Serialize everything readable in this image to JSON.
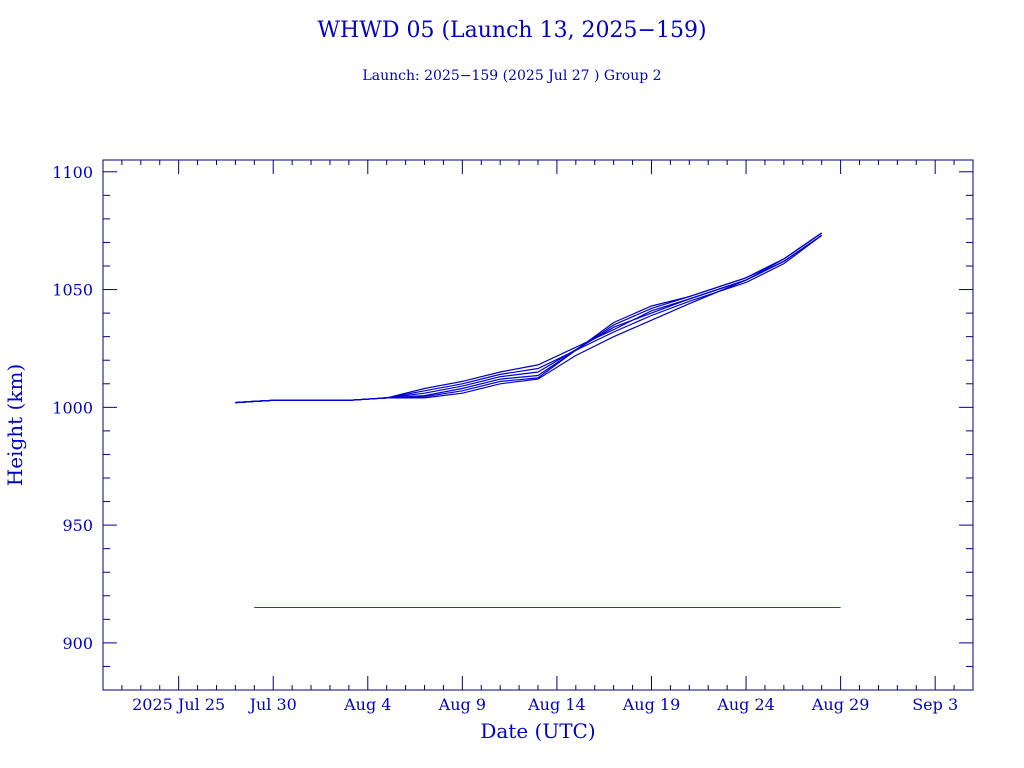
{
  "chart_data": {
    "type": "line",
    "title": "WHWD 05 (Launch 13, 2025−159)",
    "subtitle": "Launch: 2025−159  (2025 Jul 27 )  Group 2",
    "xlabel": "Date (UTC)",
    "ylabel": "Height (km)",
    "x_tick_labels": [
      "2025 Jul 25",
      "Jul 30",
      "Aug  4",
      "Aug  9",
      "Aug 14",
      "Aug 19",
      "Aug 24",
      "Aug 29",
      "Sep  3"
    ],
    "y_tick_labels": [
      "900",
      "950",
      "1000",
      "1050",
      "1100"
    ],
    "xlim": [
      "2025-07-21",
      "2025-09-05"
    ],
    "ylim": [
      880,
      1105
    ],
    "grid": false,
    "colors": {
      "series": "#0000cc",
      "reference": "#dd0000",
      "axis": "#000080",
      "text": "#0000cc"
    },
    "reference_line": {
      "y": 915,
      "x_start": "2025-07-29",
      "x_end": "2025-08-29"
    },
    "series": [
      {
        "x": [
          "2025-07-28",
          "2025-07-29",
          "2025-07-30",
          "2025-08-03",
          "2025-08-05",
          "2025-08-07",
          "2025-08-09",
          "2025-08-11",
          "2025-08-13",
          "2025-08-17",
          "2025-08-19",
          "2025-08-21",
          "2025-08-24",
          "2025-08-26",
          "2025-08-28"
        ],
        "y": [
          1002,
          1002.5,
          1003,
          1003,
          1004,
          1008,
          1011,
          1015,
          1018,
          1033,
          1041,
          1046,
          1054,
          1062,
          1073
        ]
      },
      {
        "x": [
          "2025-07-28",
          "2025-07-29",
          "2025-07-30",
          "2025-08-03",
          "2025-08-05",
          "2025-08-07",
          "2025-08-09",
          "2025-08-11",
          "2025-08-13",
          "2025-08-17",
          "2025-08-19",
          "2025-08-21",
          "2025-08-24",
          "2025-08-26",
          "2025-08-28"
        ],
        "y": [
          1002,
          1002.5,
          1003,
          1003,
          1004,
          1007,
          1010,
          1014,
          1016.5,
          1032,
          1039,
          1045,
          1053,
          1061,
          1073
        ]
      },
      {
        "x": [
          "2025-07-28",
          "2025-07-29",
          "2025-07-30",
          "2025-08-03",
          "2025-08-05",
          "2025-08-07",
          "2025-08-09",
          "2025-08-11",
          "2025-08-13",
          "2025-08-17",
          "2025-08-19",
          "2025-08-21",
          "2025-08-24",
          "2025-08-26",
          "2025-08-28"
        ],
        "y": [
          1002,
          1002.5,
          1003,
          1003,
          1004,
          1006,
          1009,
          1013,
          1015,
          1034,
          1040,
          1046,
          1054,
          1062,
          1073
        ]
      },
      {
        "x": [
          "2025-07-28",
          "2025-07-29",
          "2025-07-30",
          "2025-08-03",
          "2025-08-05",
          "2025-08-07",
          "2025-08-09",
          "2025-08-11",
          "2025-08-13",
          "2025-08-17",
          "2025-08-19",
          "2025-08-21",
          "2025-08-24",
          "2025-08-26",
          "2025-08-28"
        ],
        "y": [
          1002,
          1002.5,
          1003,
          1003,
          1004,
          1005,
          1008,
          1012,
          1013.5,
          1035,
          1042,
          1047,
          1055,
          1063,
          1074
        ]
      },
      {
        "x": [
          "2025-07-28",
          "2025-07-29",
          "2025-07-30",
          "2025-08-03",
          "2025-08-05",
          "2025-08-07",
          "2025-08-09",
          "2025-08-11",
          "2025-08-13",
          "2025-08-17",
          "2025-08-19",
          "2025-08-21",
          "2025-08-24",
          "2025-08-26",
          "2025-08-28"
        ],
        "y": [
          1002,
          1002.5,
          1003,
          1003,
          1004,
          1004.5,
          1007,
          1011,
          1012.5,
          1036,
          1043,
          1047,
          1055,
          1063,
          1074
        ]
      },
      {
        "x": [
          "2025-07-28",
          "2025-07-29",
          "2025-07-30",
          "2025-08-03",
          "2025-08-05",
          "2025-08-07",
          "2025-08-09",
          "2025-08-11",
          "2025-08-13",
          "2025-08-15",
          "2025-08-17",
          "2025-08-19",
          "2025-08-21",
          "2025-08-24",
          "2025-08-26",
          "2025-08-28"
        ],
        "y": [
          1002,
          1002.5,
          1003,
          1003,
          1004,
          1004,
          1006,
          1010,
          1012,
          1022,
          1030,
          1037,
          1044,
          1054,
          1063,
          1074
        ]
      }
    ]
  }
}
